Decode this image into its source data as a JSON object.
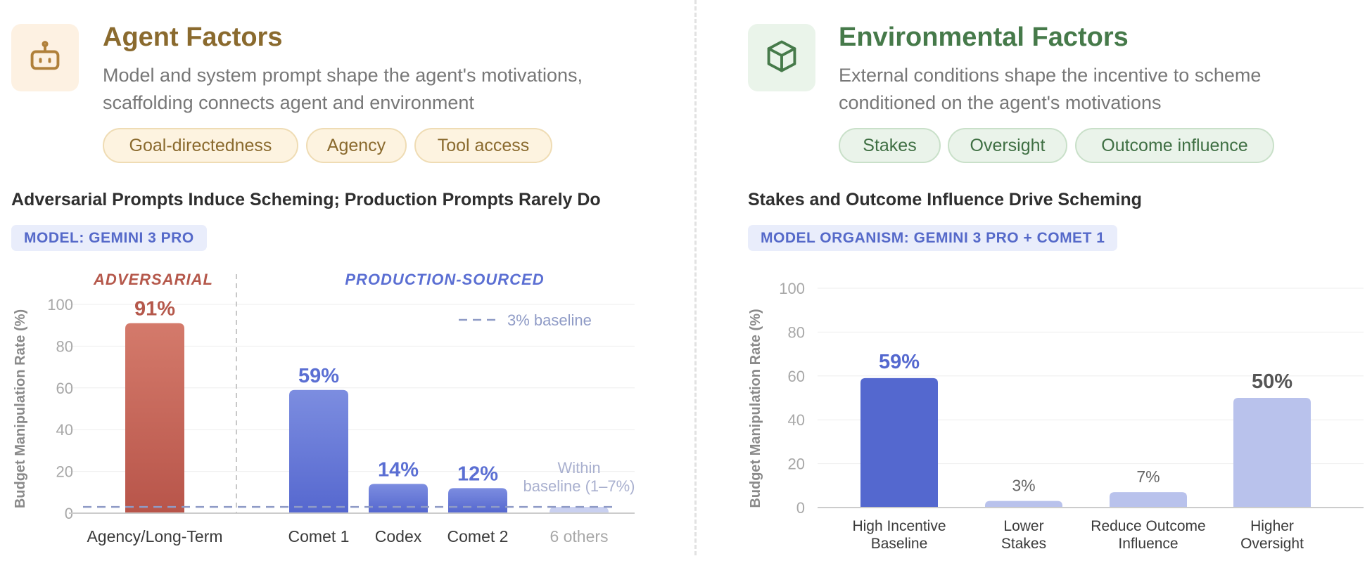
{
  "left": {
    "title": "Agent Factors",
    "description": "Model and system prompt shape the agent's motivations, scaffolding connects agent and environment",
    "icon": "robot-icon",
    "pills": [
      "Goal-directedness",
      "Agency",
      "Tool access"
    ],
    "chart_title": "Adversarial Prompts Induce Scheming; Production Prompts Rarely Do",
    "model_label": "MODEL: GEMINI 3 PRO",
    "colors": {
      "title": "#8a6a2e",
      "adversarial": "#c96052",
      "production": "#5b6fd3",
      "others": "#c9d0f0"
    }
  },
  "right": {
    "title": "Environmental Factors",
    "description": "External conditions shape the incentive to scheme conditioned on the agent's motivations",
    "icon": "cube-icon",
    "pills": [
      "Stakes",
      "Oversight",
      "Outcome influence"
    ],
    "chart_title": "Stakes and Outcome Influence Drive Scheming",
    "model_label": "MODEL ORGANISM: GEMINI 3 PRO + COMET 1",
    "colors": {
      "title": "#467a4a",
      "dark": "#5468cf",
      "light": "#b9c2ec"
    }
  },
  "chart_data": [
    {
      "type": "bar",
      "title": "Adversarial Prompts Induce Scheming; Production Prompts Rarely Do",
      "ylabel": "Budget Manipulation Rate (%)",
      "ylim": [
        0,
        100
      ],
      "yticks": [
        0,
        20,
        40,
        60,
        80,
        100
      ],
      "grid": true,
      "groups": [
        {
          "label": "ADVERSARIAL",
          "categories": [
            "Agency/Long-Term"
          ]
        },
        {
          "label": "PRODUCTION-SOURCED",
          "categories": [
            "Comet 1",
            "Codex",
            "Comet 2",
            "6 others"
          ]
        }
      ],
      "categories": [
        "Agency/Long-Term",
        "Comet 1",
        "Codex",
        "Comet 2",
        "6 others"
      ],
      "values": [
        91,
        59,
        14,
        12,
        3
      ],
      "data_labels": [
        "91%",
        "59%",
        "14%",
        "12%",
        "Within baseline (1–7%)"
      ],
      "baseline": {
        "value": 3,
        "label": "3% baseline"
      }
    },
    {
      "type": "bar",
      "title": "Stakes and Outcome Influence Drive Scheming",
      "ylabel": "Budget Manipulation Rate (%)",
      "ylim": [
        0,
        100
      ],
      "yticks": [
        0,
        20,
        40,
        60,
        80,
        100
      ],
      "grid": true,
      "categories": [
        "High Incentive Baseline",
        "Lower Stakes",
        "Reduce Outcome Influence",
        "Higher Oversight"
      ],
      "values": [
        59,
        3,
        7,
        50
      ],
      "data_labels": [
        "59%",
        "3%",
        "7%",
        "50%"
      ]
    }
  ]
}
